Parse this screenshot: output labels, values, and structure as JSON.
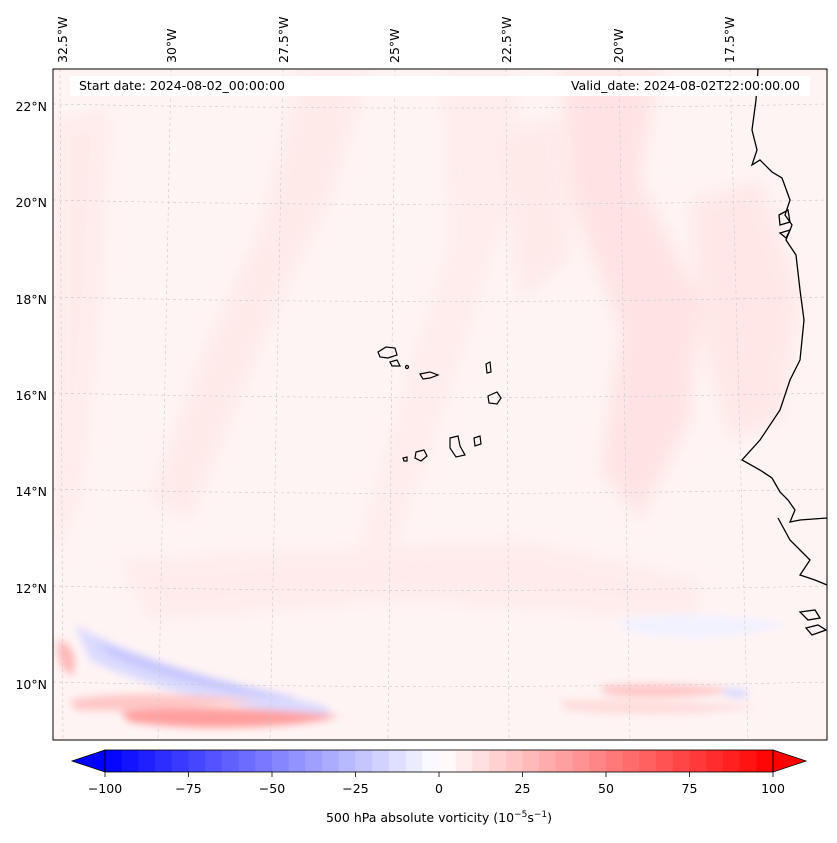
{
  "map": {
    "start_label": "Start date: 2024-08-02_00:00:00",
    "valid_label": "Valid_date: 2024-08-02T22:00:00.00",
    "lon_labels": [
      "32.5°W",
      "30°W",
      "27.5°W",
      "25°W",
      "22.5°W",
      "20°W",
      "17.5°W"
    ],
    "lat_labels": [
      "22°N",
      "20°N",
      "18°N",
      "16°N",
      "14°N",
      "12°N",
      "10°N"
    ]
  },
  "colorbar": {
    "ticks": [
      "−100",
      "−75",
      "−50",
      "−25",
      "0",
      "25",
      "50",
      "75",
      "100"
    ],
    "label": "500 hPa absolute vorticity (10",
    "label_exp1": "−5",
    "label_mid": "s",
    "label_exp2": "−1",
    "label_end": ")"
  },
  "colors": {
    "coast": "#000000",
    "grid": "#c8c8c8",
    "base_field": "#fff3f3",
    "positive_light": "#ffdede",
    "positive_strong": "#ff9c9c",
    "negative_light": "#dcdcff"
  }
}
